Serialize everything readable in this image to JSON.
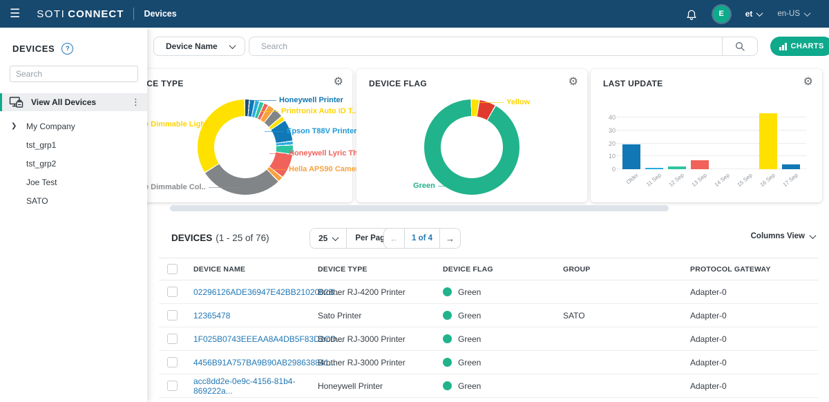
{
  "colors": {
    "accent": "#0fa98c",
    "link_blue": "#2178b5",
    "topbar": "#17486e"
  },
  "topbar": {
    "brand_soti": "SOTI",
    "brand_connect": "CONNECT",
    "page_title": "Devices",
    "user_initial": "E",
    "user_menu": "et",
    "locale": "en-US"
  },
  "sidebar": {
    "title": "DEVICES",
    "search_placeholder": "Search",
    "view_all_label": "View All Devices",
    "groups": [
      {
        "label": "My Company",
        "expandable": true
      },
      {
        "label": "tst_grp1",
        "expandable": false
      },
      {
        "label": "tst_grp2",
        "expandable": false
      },
      {
        "label": "Joe Test",
        "expandable": false
      },
      {
        "label": "SATO",
        "expandable": false
      }
    ]
  },
  "toolbar": {
    "filter_label": "Device Name",
    "search_placeholder": "Search",
    "charts_label": "CHARTS"
  },
  "chart_data": [
    {
      "type": "donut",
      "title": "DEVICE TYPE",
      "segments": [
        {
          "label": "",
          "color": "#1d4c72",
          "value": 1.3
        },
        {
          "label": "Honeywell Printer",
          "color": "#1178b5",
          "value": 1.6
        },
        {
          "label": "",
          "color": "#29abe2",
          "value": 1.3
        },
        {
          "label": "",
          "color": "#2ec4a0",
          "value": 1.3
        },
        {
          "label": "",
          "color": "#f0625a",
          "value": 1.3
        },
        {
          "label": "",
          "color": "#f9a13d",
          "value": 2.2
        },
        {
          "label": "",
          "color": "#828587",
          "value": 3.2
        },
        {
          "label": "Printronix Auto ID T..",
          "color": "#ffe100",
          "value": 1.4
        },
        {
          "label": "Epson T88V Printer",
          "color": "#1178b5",
          "value": 7.5
        },
        {
          "label": "",
          "color": "#29abe2",
          "value": 1.0
        },
        {
          "label": "",
          "color": "#2ec4a0",
          "value": 3.0
        },
        {
          "label": "Honeywell Lyric The..",
          "color": "#f0625a",
          "value": 8.5
        },
        {
          "label": "Hella APS90 Camera",
          "color": "#f9a13d",
          "value": 1.6
        },
        {
          "label": "e Dimmable Col..",
          "color": "#828587",
          "value": 29.5
        },
        {
          "label": "e Dimmable Light",
          "color": "#ffe100",
          "value": 35.3
        }
      ],
      "callouts": [
        {
          "text": "Honeywell Printer",
          "color": "#1178b5"
        },
        {
          "text": "Printronix Auto ID T..",
          "color": "#ffd400"
        },
        {
          "text": "Epson T88V Printer",
          "color": "#1e9ad6"
        },
        {
          "text": "Honeywell Lyric The..",
          "color": "#f0625a"
        },
        {
          "text": "Hella APS90 Camera",
          "color": "#f9a13d"
        },
        {
          "text": "e Dimmable Light",
          "color": "#ffd400"
        },
        {
          "text": "e Dimmable Col..",
          "color": "#8a8d90"
        }
      ]
    },
    {
      "type": "donut",
      "title": "DEVICE FLAG",
      "segments": [
        {
          "label": "Yellow",
          "color": "#ffe100",
          "value": 2.4
        },
        {
          "label": "",
          "color": "#e03a2f",
          "value": 5.4
        },
        {
          "label": "Green",
          "color": "#21b38b",
          "value": 92.2
        }
      ],
      "callouts": [
        {
          "text": "Yellow",
          "color": "#ffd400"
        },
        {
          "text": "Green",
          "color": "#21b38b"
        }
      ]
    },
    {
      "type": "bar",
      "title": "LAST UPDATE",
      "categories": [
        "Older",
        "11 Sep",
        "12 Sep",
        "13 Sep",
        "14 Sep",
        "15 Sep",
        "16 Sep",
        "17 Sep"
      ],
      "values": [
        19,
        1,
        2,
        7,
        0,
        0,
        43,
        4
      ],
      "colors": [
        "#1178b5",
        "#29abe2",
        "#2ec4a0",
        "#f0625a",
        "#1178b5",
        "#1178b5",
        "#ffe100",
        "#1178b5"
      ],
      "yticks": [
        0,
        10,
        20,
        30,
        40
      ],
      "ylim": [
        0,
        46
      ],
      "grid": "dotted"
    }
  ],
  "table": {
    "heading": "DEVICES",
    "range": "(1 - 25 of 76)",
    "per_page_value": "25",
    "per_page_label": "Per Page",
    "page_indicator": "1 of 4",
    "columns_view_label": "Columns View",
    "flag_color": "#21b38b",
    "columns": [
      "DEVICE NAME",
      "DEVICE TYPE",
      "DEVICE FLAG",
      "GROUP",
      "PROTOCOL GATEWAY"
    ],
    "rows": [
      {
        "name": "02296126ADE36947E42BB2102002B...",
        "type": "Brother RJ-4200 Printer",
        "flag": "Green",
        "group": "",
        "gateway": "Adapter-0"
      },
      {
        "name": "12365478",
        "type": "Sato Printer",
        "flag": "Green",
        "group": "SATO",
        "gateway": "Adapter-0"
      },
      {
        "name": "1F025B0743EEEAA8A4DB5F83D2CD...",
        "type": "Brother RJ-3000 Printer",
        "flag": "Green",
        "group": "",
        "gateway": "Adapter-0"
      },
      {
        "name": "4456B91A757BA9B90AB298638841...",
        "type": "Brother RJ-3000 Printer",
        "flag": "Green",
        "group": "",
        "gateway": "Adapter-0"
      },
      {
        "name": "acc8dd2e-0e9c-4156-81b4-869222a...",
        "type": "Honeywell Printer",
        "flag": "Green",
        "group": "",
        "gateway": "Adapter-0"
      }
    ]
  }
}
